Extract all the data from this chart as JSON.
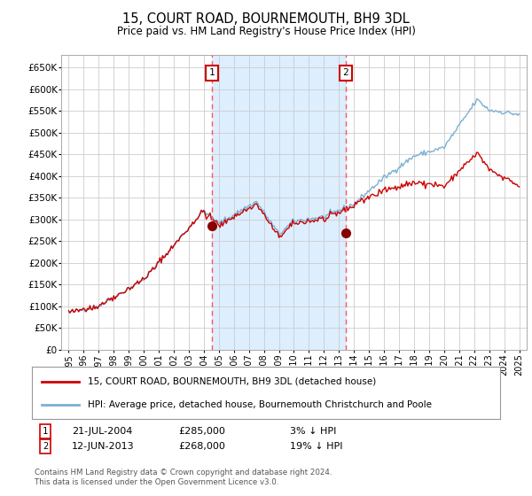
{
  "title": "15, COURT ROAD, BOURNEMOUTH, BH9 3DL",
  "subtitle": "Price paid vs. HM Land Registry's House Price Index (HPI)",
  "legend_line1": "15, COURT ROAD, BOURNEMOUTH, BH9 3DL (detached house)",
  "legend_line2": "HPI: Average price, detached house, Bournemouth Christchurch and Poole",
  "annotation1_date": "21-JUL-2004",
  "annotation1_price": "£285,000",
  "annotation1_hpi": "3% ↓ HPI",
  "annotation1_year": 2004.55,
  "annotation1_value": 285000,
  "annotation2_date": "12-JUN-2013",
  "annotation2_price": "£268,000",
  "annotation2_hpi": "19% ↓ HPI",
  "annotation2_year": 2013.45,
  "annotation2_value": 268000,
  "ylim": [
    0,
    680000
  ],
  "yticks": [
    0,
    50000,
    100000,
    150000,
    200000,
    250000,
    300000,
    350000,
    400000,
    450000,
    500000,
    550000,
    600000,
    650000
  ],
  "background_color": "#ffffff",
  "plot_bg_color": "#ffffff",
  "shaded_region_color": "#ddeeff",
  "grid_color": "#cccccc",
  "hpi_line_color": "#7ab0d4",
  "price_line_color": "#cc0000",
  "marker_color": "#880000",
  "vline_color": "#ff5555",
  "footnote": "Contains HM Land Registry data © Crown copyright and database right 2024.\nThis data is licensed under the Open Government Licence v3.0."
}
